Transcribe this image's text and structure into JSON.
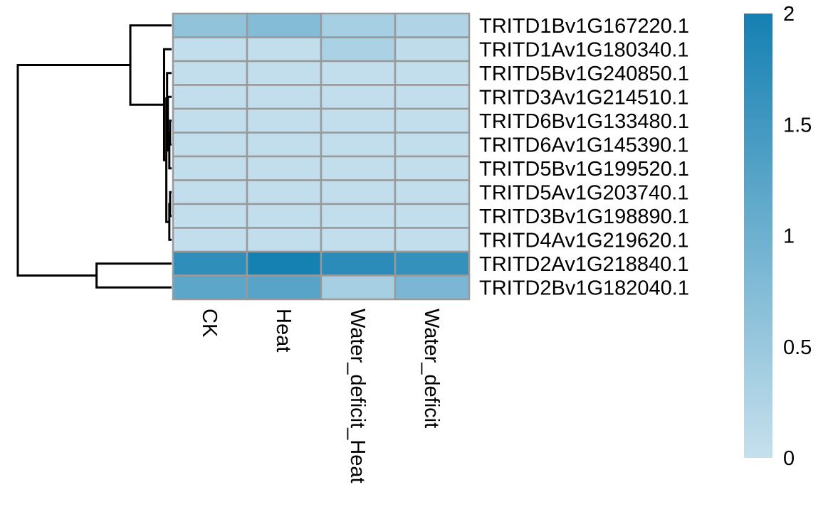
{
  "chart_data": {
    "type": "heatmap",
    "title": "",
    "rows": [
      "TRITD1Bv1G167220.1",
      "TRITD1Av1G180340.1",
      "TRITD5Bv1G240850.1",
      "TRITD3Av1G214510.1",
      "TRITD6Bv1G133480.1",
      "TRITD6Av1G145390.1",
      "TRITD5Bv1G199520.1",
      "TRITD5Av1G203740.1",
      "TRITD3Bv1G198890.1",
      "TRITD4Av1G219620.1",
      "TRITD2Av1G218840.1",
      "TRITD2Bv1G182040.1"
    ],
    "columns": [
      "CK",
      "Heat",
      "Water_deficit_Heat",
      "Water_deficit"
    ],
    "values": [
      [
        0.6,
        0.75,
        0.35,
        0.25
      ],
      [
        0.05,
        0.05,
        0.3,
        0.08
      ],
      [
        0.05,
        0.05,
        0.05,
        0.05
      ],
      [
        0.05,
        0.05,
        0.05,
        0.05
      ],
      [
        0.05,
        0.05,
        0.05,
        0.05
      ],
      [
        0.05,
        0.05,
        0.05,
        0.05
      ],
      [
        0.05,
        0.05,
        0.05,
        0.05
      ],
      [
        0.05,
        0.05,
        0.05,
        0.05
      ],
      [
        0.05,
        0.05,
        0.05,
        0.05
      ],
      [
        0.05,
        0.05,
        0.05,
        0.05
      ],
      [
        1.7,
        2.0,
        1.75,
        1.65
      ],
      [
        1.2,
        1.25,
        0.35,
        0.85
      ]
    ],
    "colorscale": {
      "min": 0,
      "max": 2,
      "low_color": "#c6e0ed",
      "high_color": "#1580b2"
    },
    "legend": {
      "ticks": [
        "0",
        "0.5",
        "1",
        "1.5",
        "2"
      ],
      "tick_values": [
        0,
        0.5,
        1,
        1.5,
        2
      ],
      "placement": "right"
    },
    "cell_border_color": "#999999",
    "dendrogram": {
      "side": "left",
      "merges": [
        {
          "a": 4,
          "b": 5,
          "height": 0.02
        },
        {
          "a": -1,
          "b": 6,
          "height": 0.03
        },
        {
          "a": -2,
          "b": 3,
          "height": 0.05
        },
        {
          "a": -3,
          "b": 2,
          "height": 0.06
        },
        {
          "a": 7,
          "b": 8,
          "height": 0.02
        },
        {
          "a": -5,
          "b": 9,
          "height": 0.03
        },
        {
          "a": -4,
          "b": -6,
          "height": 0.07
        },
        {
          "a": 1,
          "b": -7,
          "height": 0.1
        },
        {
          "a": 0,
          "b": -8,
          "height": 0.55
        },
        {
          "a": 10,
          "b": 11,
          "height": 1.0
        },
        {
          "a": -9,
          "b": -10,
          "height": 2.05
        }
      ]
    }
  }
}
